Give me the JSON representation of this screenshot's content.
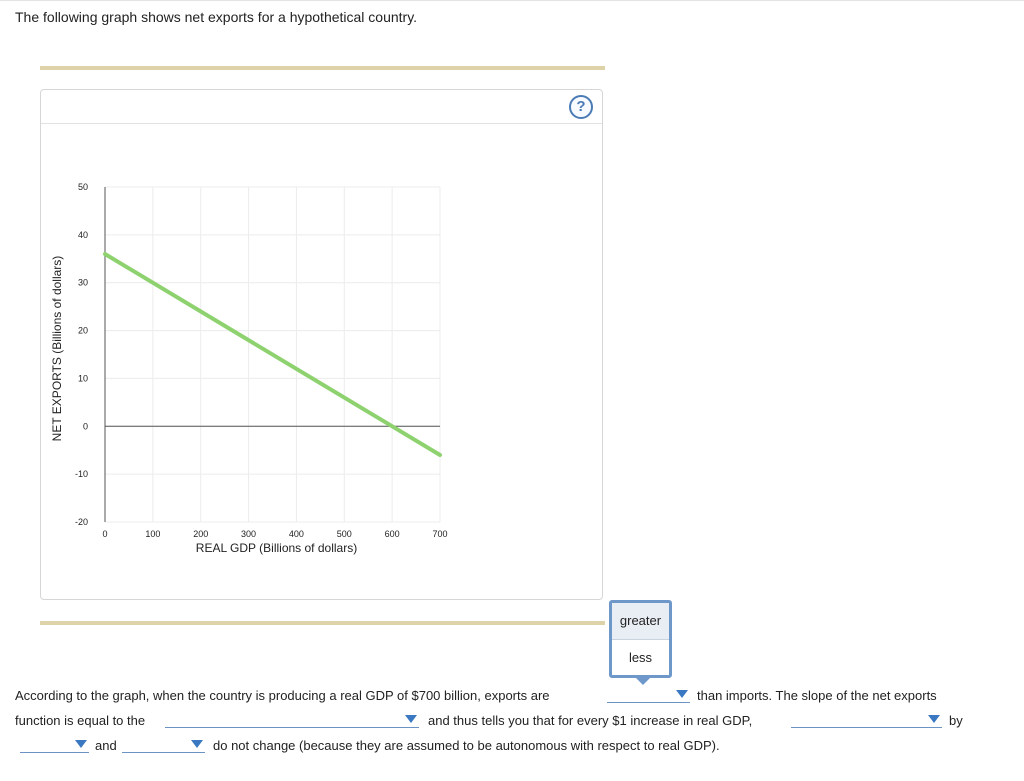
{
  "intro_text": "The following graph shows net exports for a hypothetical country.",
  "help_label": "?",
  "colors": {
    "line": "#8ed26f",
    "axis": "#555555",
    "grid": "#ececec",
    "accent": "#3b78c2"
  },
  "chart_data": {
    "type": "line",
    "xlabel": "REAL GDP (Billions of dollars)",
    "ylabel": "NET EXPORTS (Billions of dollars)",
    "xlim": [
      0,
      700
    ],
    "ylim": [
      -20,
      50
    ],
    "x_ticks": [
      0,
      100,
      200,
      300,
      400,
      500,
      600,
      700
    ],
    "y_ticks": [
      50,
      40,
      30,
      20,
      10,
      0,
      -10,
      -20
    ],
    "grid": true,
    "series": [
      {
        "x": [
          0,
          700
        ],
        "y": [
          36,
          -6
        ]
      }
    ]
  },
  "dropdown_popup": {
    "options": [
      "greater",
      "less"
    ],
    "highlighted": "greater"
  },
  "question": {
    "s1": "According to the graph, when the country is producing a real GDP of $700 billion, exports are",
    "s2": "than imports. The slope of the net exports",
    "s3": "function is equal to the",
    "s4": "and thus tells you that for every $1 increase in real GDP,",
    "s5": "by",
    "s6": "and",
    "s7": "do not change (because they are assumed to be autonomous with respect to real GDP)."
  }
}
